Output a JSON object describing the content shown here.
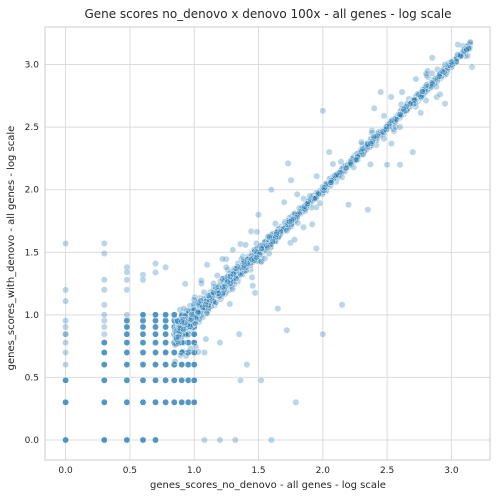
{
  "chart_data": {
    "type": "scatter",
    "title": "Gene scores no_denovo x denovo 100x - all genes - log scale",
    "xlabel": "genes_scores_no_denovo - all genes - log scale",
    "ylabel": "genes_scores_with_denovo - all genes - log scale",
    "xlim": [
      -0.16,
      3.3
    ],
    "ylim": [
      -0.16,
      3.3
    ],
    "xticks": [
      "0.0",
      "0.5",
      "1.0",
      "1.5",
      "2.0",
      "2.5",
      "3.0"
    ],
    "yticks": [
      "0.0",
      "0.5",
      "1.0",
      "1.5",
      "2.0",
      "2.5",
      "3.0"
    ],
    "grid": true,
    "point_color": "#1f77b4",
    "point_alpha": 0.3,
    "point_edge_color": "#ffffff",
    "discrete_log_levels": [
      0.0,
      0.301,
      0.477,
      0.602,
      0.699,
      0.778,
      0.845,
      0.903,
      0.954,
      1.0
    ],
    "sampled_points": [
      {
        "x": 0.0,
        "y": 1.57
      },
      {
        "x": 0.0,
        "y": 1.2
      },
      {
        "x": 0.0,
        "y": 1.11
      },
      {
        "x": 0.0,
        "y": 0.954
      },
      {
        "x": 0.0,
        "y": 0.845
      },
      {
        "x": 0.301,
        "y": 1.57
      },
      {
        "x": 0.301,
        "y": 1.49
      },
      {
        "x": 0.301,
        "y": 1.28
      },
      {
        "x": 0.301,
        "y": 1.2
      },
      {
        "x": 0.301,
        "y": 1.08
      },
      {
        "x": 0.477,
        "y": 1.38
      },
      {
        "x": 0.477,
        "y": 1.34
      },
      {
        "x": 0.477,
        "y": 1.28
      },
      {
        "x": 0.477,
        "y": 1.2
      },
      {
        "x": 0.602,
        "y": 1.32
      },
      {
        "x": 0.602,
        "y": 1.28
      },
      {
        "x": 0.699,
        "y": 1.41
      },
      {
        "x": 0.699,
        "y": 1.34
      },
      {
        "x": 0.778,
        "y": 1.38
      },
      {
        "x": 1.08,
        "y": 0.0
      },
      {
        "x": 1.2,
        "y": 0.0
      },
      {
        "x": 1.32,
        "y": 0.0
      },
      {
        "x": 1.6,
        "y": 0.0
      },
      {
        "x": 1.36,
        "y": 0.477
      },
      {
        "x": 1.41,
        "y": 0.602
      },
      {
        "x": 1.52,
        "y": 0.477
      },
      {
        "x": 1.79,
        "y": 0.301
      },
      {
        "x": 1.72,
        "y": 0.877
      },
      {
        "x": 2.0,
        "y": 0.845
      },
      {
        "x": 1.95,
        "y": 1.53
      },
      {
        "x": 2.15,
        "y": 1.08
      },
      {
        "x": 1.3,
        "y": 1.52
      },
      {
        "x": 1.4,
        "y": 1.56
      },
      {
        "x": 1.5,
        "y": 1.8
      },
      {
        "x": 1.6,
        "y": 2.0
      },
      {
        "x": 1.73,
        "y": 2.21
      },
      {
        "x": 2.0,
        "y": 2.63
      },
      {
        "x": 2.45,
        "y": 2.78
      },
      {
        "x": 2.5,
        "y": 2.2
      },
      {
        "x": 2.7,
        "y": 2.3
      },
      {
        "x": 2.6,
        "y": 2.5
      },
      {
        "x": 2.2,
        "y": 1.88
      },
      {
        "x": 2.35,
        "y": 1.84
      },
      {
        "x": 1.85,
        "y": 1.7
      },
      {
        "x": 1.7,
        "y": 1.9
      },
      {
        "x": 2.85,
        "y": 2.93
      },
      {
        "x": 2.95,
        "y": 3.0
      },
      {
        "x": 3.05,
        "y": 3.08
      },
      {
        "x": 3.12,
        "y": 3.12
      },
      {
        "x": 3.0,
        "y": 3.02
      },
      {
        "x": 3.16,
        "y": 2.98
      },
      {
        "x": 2.3,
        "y": 2.38
      },
      {
        "x": 1.15,
        "y": 1.25
      },
      {
        "x": 1.0,
        "y": 1.12
      },
      {
        "x": 0.92,
        "y": 1.05
      },
      {
        "x": 1.1,
        "y": 1.4
      },
      {
        "x": 1.25,
        "y": 1.38
      },
      {
        "x": 1.45,
        "y": 1.3
      },
      {
        "x": 1.55,
        "y": 1.45
      },
      {
        "x": 1.9,
        "y": 1.95
      },
      {
        "x": 2.05,
        "y": 2.3
      },
      {
        "x": 2.15,
        "y": 2.1
      },
      {
        "x": 2.4,
        "y": 2.65
      },
      {
        "x": 2.6,
        "y": 2.2
      },
      {
        "x": 1.78,
        "y": 1.6
      },
      {
        "x": 1.65,
        "y": 1.05
      },
      {
        "x": 1.35,
        "y": 0.845
      },
      {
        "x": 1.2,
        "y": 0.778
      },
      {
        "x": 1.08,
        "y": 0.699
      }
    ]
  }
}
